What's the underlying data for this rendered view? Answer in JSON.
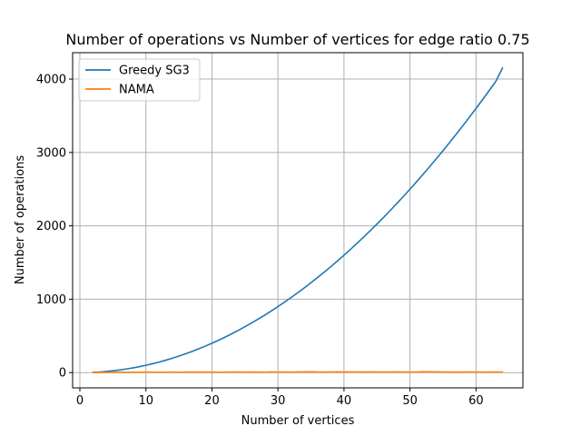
{
  "chart_data": {
    "type": "line",
    "title": "Number of operations vs Number of vertices for edge ratio 0.75",
    "xlabel": "Number of vertices",
    "ylabel": "Number of operations",
    "xlim": [
      -1.1,
      67.1
    ],
    "ylim": [
      -207.6,
      4359.6
    ],
    "xticks": [
      0,
      10,
      20,
      30,
      40,
      50,
      60
    ],
    "yticks": [
      0,
      1000,
      2000,
      3000,
      4000
    ],
    "grid": true,
    "legend": "upper-left",
    "x": [
      2,
      3,
      4,
      5,
      6,
      7,
      8,
      9,
      10,
      11,
      12,
      13,
      14,
      15,
      16,
      17,
      18,
      19,
      20,
      21,
      22,
      23,
      24,
      25,
      26,
      27,
      28,
      29,
      30,
      31,
      32,
      33,
      34,
      35,
      36,
      37,
      38,
      39,
      40,
      41,
      42,
      43,
      44,
      45,
      46,
      47,
      48,
      49,
      50,
      51,
      52,
      53,
      54,
      55,
      56,
      57,
      58,
      59,
      60,
      61,
      62,
      63,
      64
    ],
    "series": [
      {
        "name": "Greedy SG3",
        "color": "#1f77b4",
        "values": [
          4,
          9,
          16,
          25,
          36,
          49,
          64,
          81,
          100,
          121,
          144,
          169,
          196,
          225,
          256,
          289,
          324,
          361,
          400,
          441,
          484,
          529,
          576,
          625,
          676,
          729,
          784,
          841,
          900,
          961,
          1024,
          1089,
          1156,
          1225,
          1296,
          1369,
          1444,
          1521,
          1600,
          1681,
          1764,
          1849,
          1936,
          2025,
          2116,
          2209,
          2304,
          2401,
          2500,
          2601,
          2704,
          2809,
          2916,
          3025,
          3136,
          3249,
          3364,
          3481,
          3600,
          3721,
          3844,
          3969,
          4150
        ]
      },
      {
        "name": "NAMA",
        "color": "#ff7f0e",
        "values": [
          1,
          2,
          3,
          4,
          5,
          4,
          5,
          6,
          7,
          6,
          5,
          6,
          7,
          6,
          7,
          8,
          7,
          8,
          7,
          6,
          7,
          9,
          8,
          7,
          8,
          7,
          6,
          8,
          9,
          8,
          7,
          9,
          10,
          11,
          9,
          8,
          9,
          10,
          9,
          10,
          9,
          8,
          10,
          9,
          8,
          9,
          10,
          9,
          8,
          9,
          11,
          12,
          10,
          9,
          8,
          7,
          8,
          9,
          8,
          7,
          8,
          9,
          8
        ]
      }
    ]
  }
}
